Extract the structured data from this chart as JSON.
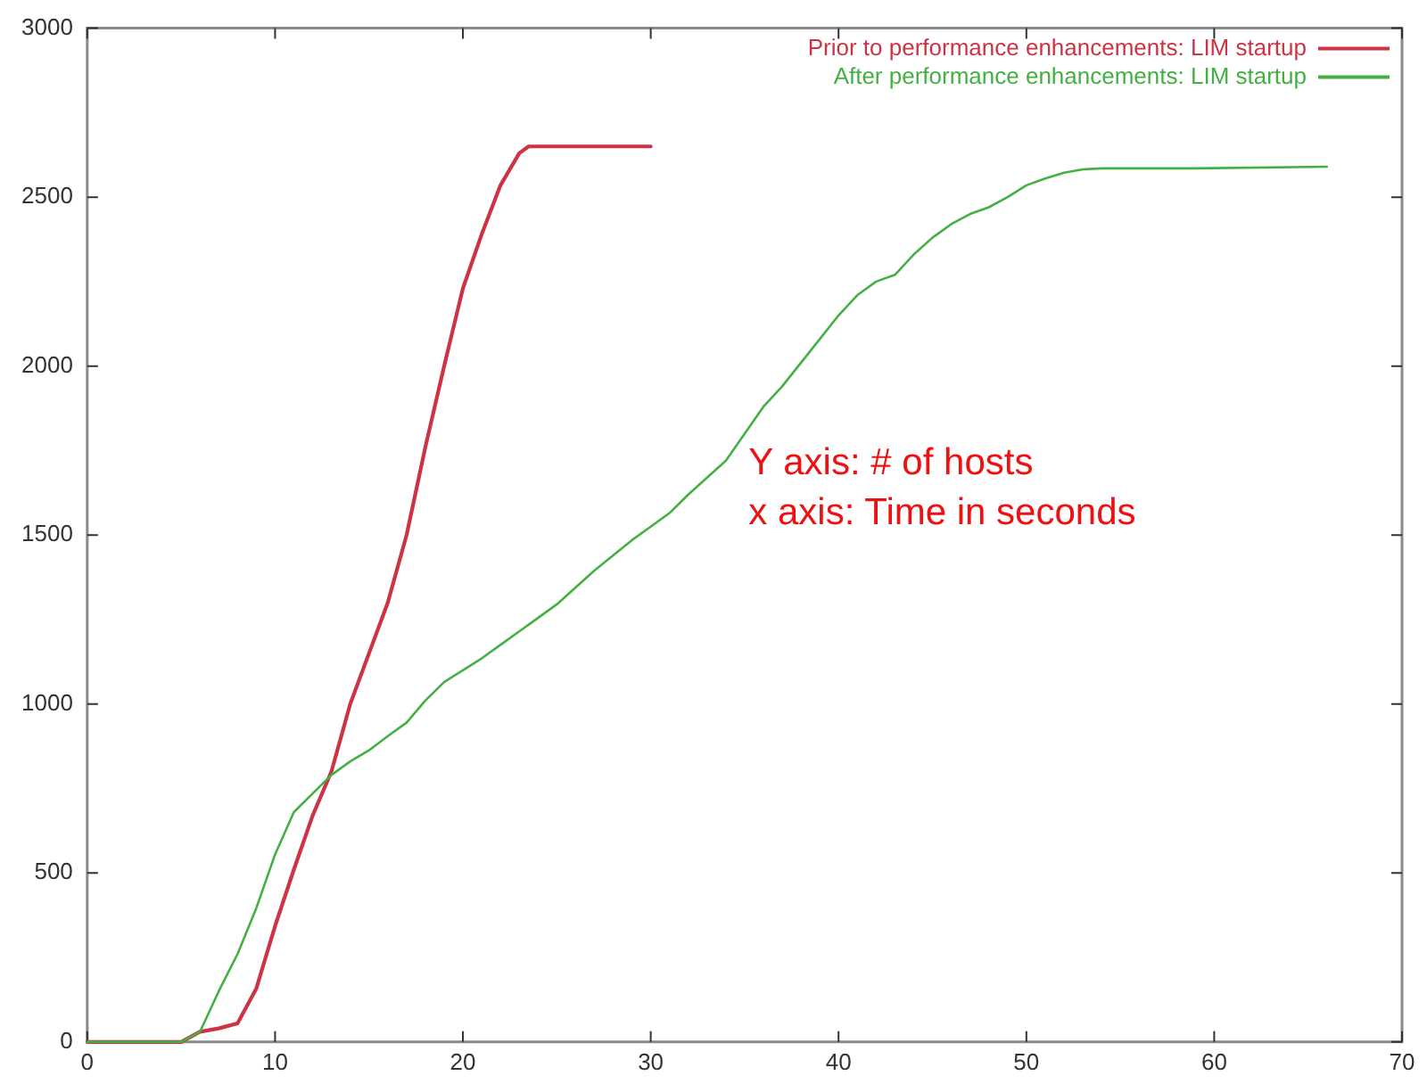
{
  "chart_data": {
    "type": "line",
    "xlim": [
      0,
      70
    ],
    "xticks": [
      0,
      10,
      20,
      30,
      40,
      50,
      60,
      70
    ],
    "ylim": [
      0,
      3000
    ],
    "yticks": [
      0,
      500,
      1000,
      1500,
      2000,
      2500,
      3000
    ],
    "grid": false,
    "legend": "top right",
    "marker": "none",
    "line_style": "solid",
    "annotations": [
      "Y axis: # of hosts",
      "x axis: Time in seconds"
    ],
    "series": [
      {
        "name": "Prior to performance enhancements: LIM startup",
        "color": "#cc3344",
        "x": [
          0,
          5,
          6,
          7,
          8,
          9,
          10,
          11,
          12,
          13,
          14,
          15,
          16,
          17,
          18,
          19,
          20,
          21,
          22,
          23,
          23.5,
          24,
          30
        ],
        "values": [
          0,
          0,
          30,
          40,
          55,
          158,
          343,
          510,
          670,
          800,
          1000,
          1150,
          1300,
          1500,
          1760,
          2000,
          2230,
          2390,
          2535,
          2630,
          2650,
          2650,
          2650
        ]
      },
      {
        "name": "After performance enhancements: LIM startup",
        "color": "#44b044",
        "x": [
          0,
          5,
          6,
          7,
          8,
          9,
          10,
          11,
          12,
          13,
          14,
          15,
          16,
          17,
          18,
          19,
          20,
          21,
          22,
          23,
          24,
          25,
          26,
          27,
          28,
          29,
          30,
          31,
          32,
          33,
          34,
          35,
          36,
          37,
          38,
          39,
          40,
          41,
          42,
          43,
          44,
          45,
          46,
          47,
          48,
          49,
          50,
          51,
          52,
          53,
          54,
          59,
          66
        ],
        "values": [
          0,
          0,
          30,
          150,
          260,
          396,
          555,
          680,
          735,
          790,
          830,
          863,
          905,
          945,
          1010,
          1065,
          1100,
          1135,
          1175,
          1215,
          1255,
          1295,
          1345,
          1395,
          1440,
          1485,
          1525,
          1565,
          1620,
          1670,
          1720,
          1800,
          1880,
          1940,
          2010,
          2080,
          2150,
          2210,
          2250,
          2270,
          2330,
          2380,
          2420,
          2450,
          2470,
          2500,
          2535,
          2555,
          2572,
          2582,
          2585,
          2585,
          2590
        ]
      }
    ]
  }
}
